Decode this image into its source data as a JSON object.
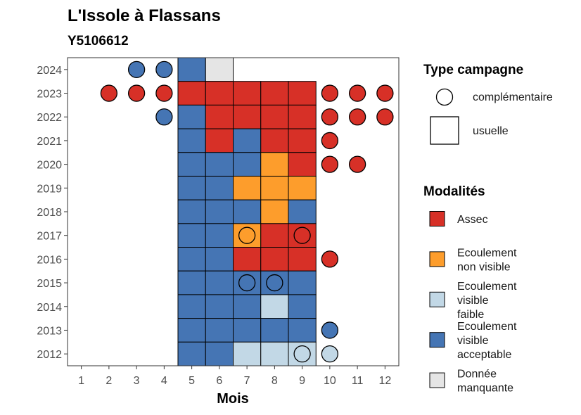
{
  "chart_data": {
    "type": "heatmap",
    "title": "L'Issole à Flassans",
    "subtitle": "Y5106612",
    "xlabel": "Mois",
    "ylabel": "",
    "x_ticks": [
      1,
      2,
      3,
      4,
      5,
      6,
      7,
      8,
      9,
      10,
      11,
      12
    ],
    "y_ticks": [
      2012,
      2013,
      2014,
      2015,
      2016,
      2017,
      2018,
      2019,
      2020,
      2021,
      2022,
      2023,
      2024
    ],
    "x_range": [
      0.5,
      12.5
    ],
    "y_range": [
      2011.5,
      2024.5
    ],
    "grid": false,
    "categories": {
      "assec": {
        "label": "Assec",
        "color": "#d73027"
      },
      "ecoulement_non_visible": {
        "label": "Ecoulement\nnon visible",
        "color": "#fd9d2c"
      },
      "ecoulement_visible_faible": {
        "label": "Ecoulement\nvisible\nfaible",
        "color": "#c2d8e6"
      },
      "ecoulement_visible_acceptable": {
        "label": "Ecoulement\nvisible\nacceptable",
        "color": "#4575b4"
      },
      "donnee_manquante": {
        "label": "Donnée\nmanquante",
        "color": "#e5e5e5"
      }
    },
    "campaign_types": {
      "complementaire": {
        "label": "complémentaire",
        "shape": "circle"
      },
      "usuelle": {
        "label": "usuelle",
        "shape": "square"
      }
    },
    "legend": {
      "position": "right",
      "campaign_title": "Type campagne",
      "modalities_title": "Modalités"
    },
    "squares": [
      {
        "year": 2024,
        "month": 5,
        "cat": "ecoulement_visible_acceptable"
      },
      {
        "year": 2024,
        "month": 6,
        "cat": "donnee_manquante"
      },
      {
        "year": 2023,
        "month": 5,
        "cat": "assec"
      },
      {
        "year": 2023,
        "month": 6,
        "cat": "assec"
      },
      {
        "year": 2023,
        "month": 7,
        "cat": "assec"
      },
      {
        "year": 2023,
        "month": 8,
        "cat": "assec"
      },
      {
        "year": 2023,
        "month": 9,
        "cat": "assec"
      },
      {
        "year": 2022,
        "month": 5,
        "cat": "ecoulement_visible_acceptable"
      },
      {
        "year": 2022,
        "month": 6,
        "cat": "assec"
      },
      {
        "year": 2022,
        "month": 7,
        "cat": "assec"
      },
      {
        "year": 2022,
        "month": 8,
        "cat": "assec"
      },
      {
        "year": 2022,
        "month": 9,
        "cat": "assec"
      },
      {
        "year": 2021,
        "month": 5,
        "cat": "ecoulement_visible_acceptable"
      },
      {
        "year": 2021,
        "month": 6,
        "cat": "assec"
      },
      {
        "year": 2021,
        "month": 7,
        "cat": "ecoulement_visible_acceptable"
      },
      {
        "year": 2021,
        "month": 8,
        "cat": "assec"
      },
      {
        "year": 2021,
        "month": 9,
        "cat": "assec"
      },
      {
        "year": 2020,
        "month": 5,
        "cat": "ecoulement_visible_acceptable"
      },
      {
        "year": 2020,
        "month": 6,
        "cat": "ecoulement_visible_acceptable"
      },
      {
        "year": 2020,
        "month": 7,
        "cat": "ecoulement_visible_acceptable"
      },
      {
        "year": 2020,
        "month": 8,
        "cat": "ecoulement_non_visible"
      },
      {
        "year": 2020,
        "month": 9,
        "cat": "assec"
      },
      {
        "year": 2019,
        "month": 5,
        "cat": "ecoulement_visible_acceptable"
      },
      {
        "year": 2019,
        "month": 6,
        "cat": "ecoulement_visible_acceptable"
      },
      {
        "year": 2019,
        "month": 7,
        "cat": "ecoulement_non_visible"
      },
      {
        "year": 2019,
        "month": 8,
        "cat": "ecoulement_non_visible"
      },
      {
        "year": 2019,
        "month": 9,
        "cat": "ecoulement_non_visible"
      },
      {
        "year": 2018,
        "month": 5,
        "cat": "ecoulement_visible_acceptable"
      },
      {
        "year": 2018,
        "month": 6,
        "cat": "ecoulement_visible_acceptable"
      },
      {
        "year": 2018,
        "month": 7,
        "cat": "ecoulement_visible_acceptable"
      },
      {
        "year": 2018,
        "month": 8,
        "cat": "ecoulement_non_visible"
      },
      {
        "year": 2018,
        "month": 9,
        "cat": "ecoulement_visible_acceptable"
      },
      {
        "year": 2017,
        "month": 5,
        "cat": "ecoulement_visible_acceptable"
      },
      {
        "year": 2017,
        "month": 6,
        "cat": "ecoulement_visible_acceptable"
      },
      {
        "year": 2017,
        "month": 7,
        "cat": "ecoulement_non_visible"
      },
      {
        "year": 2017,
        "month": 8,
        "cat": "assec"
      },
      {
        "year": 2017,
        "month": 9,
        "cat": "assec"
      },
      {
        "year": 2016,
        "month": 5,
        "cat": "ecoulement_visible_acceptable"
      },
      {
        "year": 2016,
        "month": 6,
        "cat": "ecoulement_visible_acceptable"
      },
      {
        "year": 2016,
        "month": 7,
        "cat": "assec"
      },
      {
        "year": 2016,
        "month": 8,
        "cat": "assec"
      },
      {
        "year": 2016,
        "month": 9,
        "cat": "assec"
      },
      {
        "year": 2015,
        "month": 5,
        "cat": "ecoulement_visible_acceptable"
      },
      {
        "year": 2015,
        "month": 6,
        "cat": "ecoulement_visible_acceptable"
      },
      {
        "year": 2015,
        "month": 7,
        "cat": "ecoulement_visible_acceptable"
      },
      {
        "year": 2015,
        "month": 8,
        "cat": "ecoulement_visible_acceptable"
      },
      {
        "year": 2015,
        "month": 9,
        "cat": "ecoulement_visible_acceptable"
      },
      {
        "year": 2014,
        "month": 5,
        "cat": "ecoulement_visible_acceptable"
      },
      {
        "year": 2014,
        "month": 6,
        "cat": "ecoulement_visible_acceptable"
      },
      {
        "year": 2014,
        "month": 7,
        "cat": "ecoulement_visible_acceptable"
      },
      {
        "year": 2014,
        "month": 8,
        "cat": "ecoulement_visible_faible"
      },
      {
        "year": 2014,
        "month": 9,
        "cat": "ecoulement_visible_acceptable"
      },
      {
        "year": 2013,
        "month": 5,
        "cat": "ecoulement_visible_acceptable"
      },
      {
        "year": 2013,
        "month": 6,
        "cat": "ecoulement_visible_acceptable"
      },
      {
        "year": 2013,
        "month": 7,
        "cat": "ecoulement_visible_acceptable"
      },
      {
        "year": 2013,
        "month": 8,
        "cat": "ecoulement_visible_acceptable"
      },
      {
        "year": 2013,
        "month": 9,
        "cat": "ecoulement_visible_acceptable"
      },
      {
        "year": 2012,
        "month": 5,
        "cat": "ecoulement_visible_acceptable"
      },
      {
        "year": 2012,
        "month": 6,
        "cat": "ecoulement_visible_acceptable"
      },
      {
        "year": 2012,
        "month": 7,
        "cat": "ecoulement_visible_faible"
      },
      {
        "year": 2012,
        "month": 8,
        "cat": "ecoulement_visible_faible"
      },
      {
        "year": 2012,
        "month": 9,
        "cat": "ecoulement_visible_faible"
      }
    ],
    "circles": [
      {
        "year": 2024,
        "month": 3,
        "cat": "ecoulement_visible_acceptable"
      },
      {
        "year": 2024,
        "month": 4,
        "cat": "ecoulement_visible_acceptable"
      },
      {
        "year": 2023,
        "month": 2,
        "cat": "assec"
      },
      {
        "year": 2023,
        "month": 3,
        "cat": "assec"
      },
      {
        "year": 2023,
        "month": 4,
        "cat": "assec"
      },
      {
        "year": 2023,
        "month": 10,
        "cat": "assec"
      },
      {
        "year": 2023,
        "month": 11,
        "cat": "assec"
      },
      {
        "year": 2023,
        "month": 12,
        "cat": "assec"
      },
      {
        "year": 2022,
        "month": 4,
        "cat": "ecoulement_visible_acceptable"
      },
      {
        "year": 2022,
        "month": 10,
        "cat": "assec"
      },
      {
        "year": 2022,
        "month": 11,
        "cat": "assec"
      },
      {
        "year": 2022,
        "month": 12,
        "cat": "assec"
      },
      {
        "year": 2021,
        "month": 10,
        "cat": "assec"
      },
      {
        "year": 2020,
        "month": 10,
        "cat": "assec"
      },
      {
        "year": 2020,
        "month": 11,
        "cat": "assec"
      },
      {
        "year": 2017,
        "month": 7,
        "cat": "ecoulement_non_visible"
      },
      {
        "year": 2017,
        "month": 9,
        "cat": "assec"
      },
      {
        "year": 2016,
        "month": 10,
        "cat": "assec"
      },
      {
        "year": 2015,
        "month": 7,
        "cat": "ecoulement_visible_acceptable"
      },
      {
        "year": 2015,
        "month": 8,
        "cat": "ecoulement_visible_acceptable"
      },
      {
        "year": 2013,
        "month": 10,
        "cat": "ecoulement_visible_acceptable"
      },
      {
        "year": 2012,
        "month": 9,
        "cat": "ecoulement_visible_faible"
      },
      {
        "year": 2012,
        "month": 10,
        "cat": "ecoulement_visible_faible"
      }
    ]
  }
}
